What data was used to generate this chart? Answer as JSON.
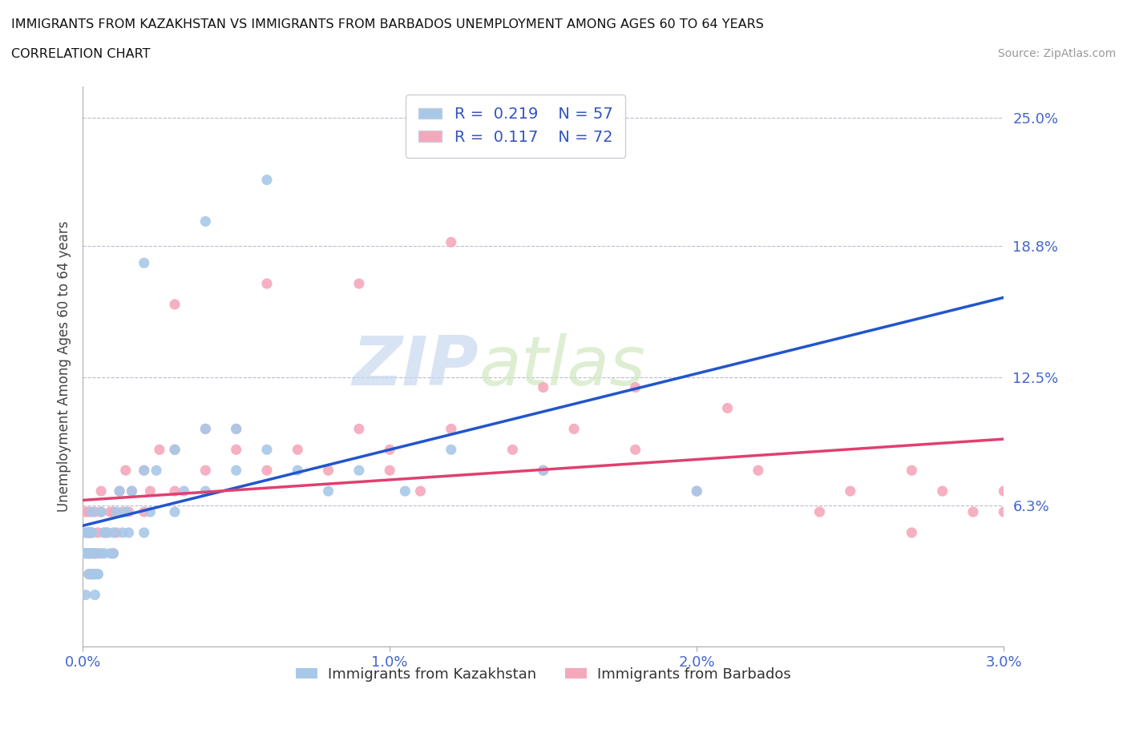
{
  "title_line1": "IMMIGRANTS FROM KAZAKHSTAN VS IMMIGRANTS FROM BARBADOS UNEMPLOYMENT AMONG AGES 60 TO 64 YEARS",
  "title_line2": "CORRELATION CHART",
  "source_text": "Source: ZipAtlas.com",
  "ylabel": "Unemployment Among Ages 60 to 64 years",
  "xlim": [
    0.0,
    0.03
  ],
  "ylim": [
    -0.005,
    0.265
  ],
  "ytick_vals": [
    0.063,
    0.125,
    0.188,
    0.25
  ],
  "ytick_labels": [
    "6.3%",
    "12.5%",
    "18.8%",
    "25.0%"
  ],
  "xtick_vals": [
    0.0,
    0.01,
    0.02,
    0.03
  ],
  "xtick_labels": [
    "0.0%",
    "1.0%",
    "2.0%",
    "3.0%"
  ],
  "kaz_R": 0.219,
  "kaz_N": 57,
  "bar_R": 0.117,
  "bar_N": 72,
  "kaz_color": "#a8c8e8",
  "bar_color": "#f4a8bc",
  "kaz_line_color": "#2255cc",
  "bar_line_color": "#e04070",
  "watermark_zip": "ZIP",
  "watermark_atlas": "atlas",
  "legend_label_kaz": "Immigrants from Kazakhstan",
  "legend_label_bar": "Immigrants from Barbados",
  "kaz_x": [
    0.0002,
    0.0003,
    0.0001,
    0.0004,
    0.0002,
    0.0001,
    0.0003,
    0.0002,
    0.0004,
    0.0001,
    0.0003,
    0.0002,
    0.0001,
    0.0004,
    0.0003,
    0.0002,
    0.0005,
    0.0003,
    0.0004,
    0.0002,
    0.0006,
    0.0007,
    0.0005,
    0.0006,
    0.0007,
    0.0008,
    0.0009,
    0.001,
    0.001,
    0.0011,
    0.0012,
    0.0013,
    0.0014,
    0.0015,
    0.0016,
    0.002,
    0.002,
    0.0022,
    0.0024,
    0.003,
    0.003,
    0.0033,
    0.004,
    0.004,
    0.005,
    0.005,
    0.006,
    0.007,
    0.008,
    0.009,
    0.0105,
    0.012,
    0.015,
    0.02,
    0.002,
    0.004,
    0.006
  ],
  "kaz_y": [
    0.04,
    0.03,
    0.05,
    0.03,
    0.04,
    0.02,
    0.04,
    0.05,
    0.03,
    0.04,
    0.05,
    0.03,
    0.04,
    0.02,
    0.05,
    0.04,
    0.03,
    0.06,
    0.04,
    0.05,
    0.04,
    0.05,
    0.03,
    0.06,
    0.04,
    0.05,
    0.04,
    0.05,
    0.04,
    0.06,
    0.07,
    0.05,
    0.06,
    0.05,
    0.07,
    0.05,
    0.08,
    0.06,
    0.08,
    0.06,
    0.09,
    0.07,
    0.07,
    0.1,
    0.08,
    0.1,
    0.09,
    0.08,
    0.07,
    0.08,
    0.07,
    0.09,
    0.08,
    0.07,
    0.18,
    0.2,
    0.22
  ],
  "bar_x": [
    0.0001,
    0.0002,
    0.0003,
    0.0002,
    0.0001,
    0.0003,
    0.0002,
    0.0004,
    0.0001,
    0.0003,
    0.0002,
    0.0004,
    0.0003,
    0.0002,
    0.0004,
    0.0005,
    0.0003,
    0.0004,
    0.0002,
    0.0005,
    0.0006,
    0.0007,
    0.0006,
    0.0008,
    0.0009,
    0.001,
    0.001,
    0.0011,
    0.0012,
    0.0013,
    0.0014,
    0.0015,
    0.0016,
    0.002,
    0.002,
    0.0022,
    0.0025,
    0.003,
    0.003,
    0.004,
    0.004,
    0.005,
    0.005,
    0.006,
    0.007,
    0.008,
    0.009,
    0.01,
    0.01,
    0.011,
    0.012,
    0.014,
    0.015,
    0.016,
    0.018,
    0.02,
    0.022,
    0.025,
    0.027,
    0.028,
    0.029,
    0.03,
    0.03,
    0.003,
    0.006,
    0.009,
    0.012,
    0.015,
    0.018,
    0.021,
    0.024,
    0.027
  ],
  "bar_y": [
    0.04,
    0.05,
    0.03,
    0.04,
    0.06,
    0.03,
    0.05,
    0.04,
    0.05,
    0.03,
    0.06,
    0.04,
    0.05,
    0.03,
    0.04,
    0.05,
    0.04,
    0.06,
    0.05,
    0.04,
    0.06,
    0.05,
    0.07,
    0.05,
    0.06,
    0.04,
    0.06,
    0.05,
    0.07,
    0.06,
    0.08,
    0.06,
    0.07,
    0.06,
    0.08,
    0.07,
    0.09,
    0.07,
    0.09,
    0.08,
    0.1,
    0.09,
    0.1,
    0.08,
    0.09,
    0.08,
    0.1,
    0.08,
    0.09,
    0.07,
    0.1,
    0.09,
    0.08,
    0.1,
    0.09,
    0.07,
    0.08,
    0.07,
    0.08,
    0.07,
    0.06,
    0.07,
    0.06,
    0.16,
    0.17,
    0.17,
    0.19,
    0.12,
    0.12,
    0.11,
    0.06,
    0.05
  ]
}
